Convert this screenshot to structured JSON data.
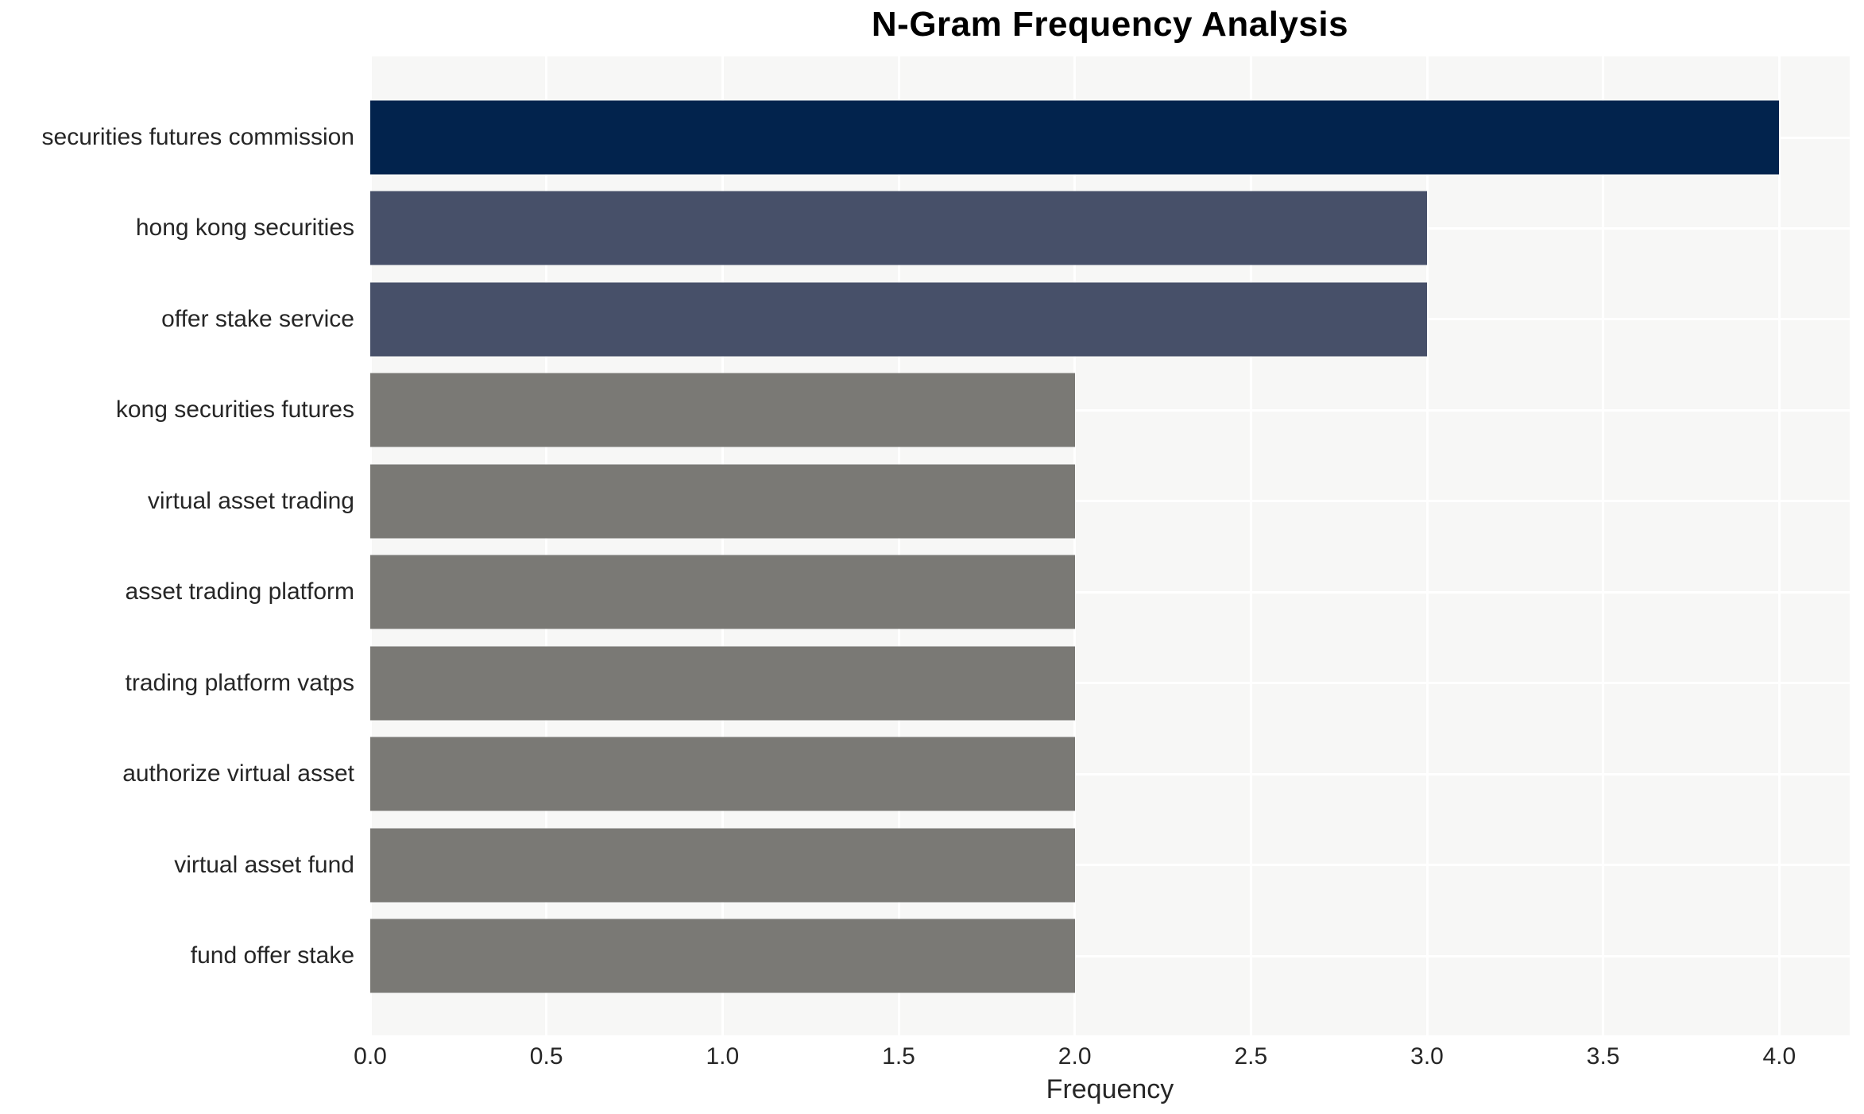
{
  "page": {
    "background": "#ffffff"
  },
  "chart_data": {
    "type": "bar",
    "orientation": "horizontal",
    "title": "N-Gram Frequency Analysis",
    "xlabel": "Frequency",
    "ylabel": "",
    "categories": [
      "securities futures commission",
      "hong kong securities",
      "offer stake service",
      "kong securities futures",
      "virtual asset trading",
      "asset trading platform",
      "trading platform vatps",
      "authorize virtual asset",
      "virtual asset fund",
      "fund offer stake"
    ],
    "values": [
      4,
      3,
      3,
      2,
      2,
      2,
      2,
      2,
      2,
      2
    ],
    "bar_colors": [
      "#02234d",
      "#475069",
      "#475069",
      "#7a7975",
      "#7a7975",
      "#7a7975",
      "#7a7975",
      "#7a7975",
      "#7a7975",
      "#7a7975"
    ],
    "xticks": [
      0.0,
      0.5,
      1.0,
      1.5,
      2.0,
      2.5,
      3.0,
      3.5,
      4.0
    ],
    "xtick_labels": [
      "0.0",
      "0.5",
      "1.0",
      "1.5",
      "2.0",
      "2.5",
      "3.0",
      "3.5",
      "4.0"
    ],
    "xlim": [
      0,
      4.2
    ],
    "grid": true,
    "legend": false,
    "plot_background": "#f7f7f6",
    "gridline_color": "#ffffff",
    "text_color": "#262626",
    "layout": {
      "first_row_center_pct": 8.28,
      "row_pitch_pct": 9.29
    }
  }
}
